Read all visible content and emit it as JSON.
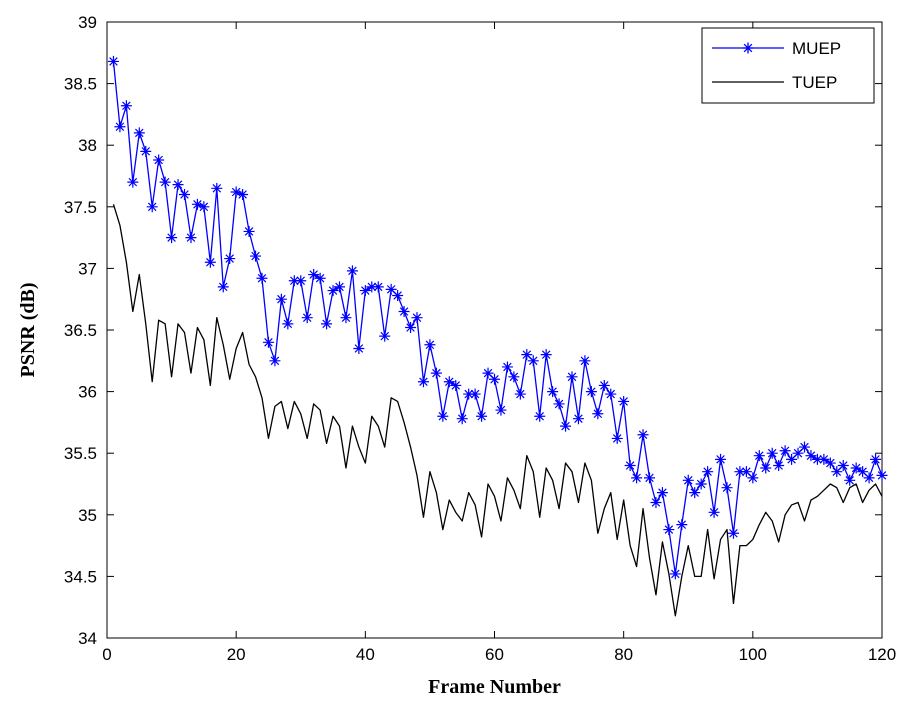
{
  "chart_data": {
    "type": "line",
    "xlabel": "Frame Number",
    "ylabel": "PSNR (dB)",
    "xlim": [
      0,
      120
    ],
    "ylim": [
      34,
      39
    ],
    "xticks": [
      0,
      20,
      40,
      60,
      80,
      100,
      120
    ],
    "yticks": [
      34,
      34.5,
      35,
      35.5,
      36,
      36.5,
      37,
      37.5,
      38,
      38.5,
      39
    ],
    "xtick_labels": [
      "0",
      "20",
      "40",
      "60",
      "80",
      "100",
      "120"
    ],
    "ytick_labels": [
      "34",
      "34.5",
      "35",
      "35.5",
      "36",
      "36.5",
      "37",
      "37.5",
      "38",
      "38.5",
      "39"
    ],
    "grid": false,
    "legend_position": "top-right",
    "series": [
      {
        "name": "MUEP",
        "color": "#0000ff",
        "marker": "star",
        "x": [
          1,
          2,
          3,
          4,
          5,
          6,
          7,
          8,
          9,
          10,
          11,
          12,
          13,
          14,
          15,
          16,
          17,
          18,
          19,
          20,
          21,
          22,
          23,
          24,
          25,
          26,
          27,
          28,
          29,
          30,
          31,
          32,
          33,
          34,
          35,
          36,
          37,
          38,
          39,
          40,
          41,
          42,
          43,
          44,
          45,
          46,
          47,
          48,
          49,
          50,
          51,
          52,
          53,
          54,
          55,
          56,
          57,
          58,
          59,
          60,
          61,
          62,
          63,
          64,
          65,
          66,
          67,
          68,
          69,
          70,
          71,
          72,
          73,
          74,
          75,
          76,
          77,
          78,
          79,
          80,
          81,
          82,
          83,
          84,
          85,
          86,
          87,
          88,
          89,
          90,
          91,
          92,
          93,
          94,
          95,
          96,
          97,
          98,
          99,
          100,
          101,
          102,
          103,
          104,
          105,
          106,
          107,
          108,
          109,
          110,
          111,
          112,
          113,
          114,
          115,
          116,
          117,
          118,
          119,
          120
        ],
        "y": [
          38.68,
          38.15,
          38.32,
          37.7,
          38.1,
          37.95,
          37.5,
          37.88,
          37.7,
          37.25,
          37.68,
          37.6,
          37.25,
          37.52,
          37.5,
          37.05,
          37.65,
          36.85,
          37.08,
          37.62,
          37.6,
          37.3,
          37.1,
          36.92,
          36.4,
          36.25,
          36.75,
          36.55,
          36.9,
          36.9,
          36.6,
          36.95,
          36.92,
          36.55,
          36.82,
          36.85,
          36.6,
          36.98,
          36.35,
          36.82,
          36.85,
          36.85,
          36.45,
          36.83,
          36.78,
          36.65,
          36.52,
          36.6,
          36.08,
          36.38,
          36.15,
          35.8,
          36.08,
          36.05,
          35.78,
          35.98,
          35.98,
          35.8,
          36.15,
          36.1,
          35.85,
          36.2,
          36.12,
          35.98,
          36.3,
          36.25,
          35.8,
          36.3,
          36.0,
          35.9,
          35.72,
          36.12,
          35.78,
          36.25,
          36.0,
          35.82,
          36.05,
          35.98,
          35.62,
          35.92,
          35.4,
          35.3,
          35.65,
          35.3,
          35.1,
          35.18,
          34.88,
          34.52,
          34.92,
          35.28,
          35.18,
          35.25,
          35.35,
          35.02,
          35.45,
          35.22,
          34.85,
          35.35,
          35.35,
          35.3,
          35.48,
          35.38,
          35.5,
          35.4,
          35.52,
          35.45,
          35.5,
          35.55,
          35.48,
          35.45,
          35.45,
          35.42,
          35.35,
          35.4,
          35.28,
          35.38,
          35.35,
          35.3,
          35.45,
          35.32
        ]
      },
      {
        "name": "TUEP",
        "color": "#000000",
        "x": [
          1,
          2,
          3,
          4,
          5,
          6,
          7,
          8,
          9,
          10,
          11,
          12,
          13,
          14,
          15,
          16,
          17,
          18,
          19,
          20,
          21,
          22,
          23,
          24,
          25,
          26,
          27,
          28,
          29,
          30,
          31,
          32,
          33,
          34,
          35,
          36,
          37,
          38,
          39,
          40,
          41,
          42,
          43,
          44,
          45,
          46,
          47,
          48,
          49,
          50,
          51,
          52,
          53,
          54,
          55,
          56,
          57,
          58,
          59,
          60,
          61,
          62,
          63,
          64,
          65,
          66,
          67,
          68,
          69,
          70,
          71,
          72,
          73,
          74,
          75,
          76,
          77,
          78,
          79,
          80,
          81,
          82,
          83,
          84,
          85,
          86,
          87,
          88,
          89,
          90,
          91,
          92,
          93,
          94,
          95,
          96,
          97,
          98,
          99,
          100,
          101,
          102,
          103,
          104,
          105,
          106,
          107,
          108,
          109,
          110,
          111,
          112,
          113,
          114,
          115,
          116,
          117,
          118,
          119,
          120
        ],
        "y": [
          37.52,
          37.35,
          37.05,
          36.65,
          36.95,
          36.55,
          36.08,
          36.58,
          36.55,
          36.12,
          36.55,
          36.48,
          36.15,
          36.52,
          36.42,
          36.05,
          36.6,
          36.38,
          36.1,
          36.35,
          36.48,
          36.22,
          36.12,
          35.95,
          35.62,
          35.88,
          35.92,
          35.7,
          35.92,
          35.82,
          35.62,
          35.9,
          35.85,
          35.58,
          35.8,
          35.72,
          35.38,
          35.72,
          35.55,
          35.42,
          35.8,
          35.72,
          35.55,
          35.95,
          35.92,
          35.75,
          35.55,
          35.32,
          34.98,
          35.35,
          35.18,
          34.88,
          35.12,
          35.02,
          34.95,
          35.18,
          35.08,
          34.82,
          35.25,
          35.15,
          34.95,
          35.3,
          35.2,
          35.05,
          35.48,
          35.35,
          34.98,
          35.38,
          35.28,
          35.05,
          35.42,
          35.35,
          35.1,
          35.42,
          35.28,
          34.85,
          35.05,
          35.18,
          34.8,
          35.12,
          34.75,
          34.58,
          35.05,
          34.65,
          34.35,
          34.78,
          34.52,
          34.18,
          34.5,
          34.75,
          34.5,
          34.5,
          34.88,
          34.48,
          34.8,
          34.88,
          34.28,
          34.75,
          34.75,
          34.8,
          34.92,
          35.02,
          34.95,
          34.78,
          35.0,
          35.08,
          35.1,
          34.95,
          35.12,
          35.15,
          35.2,
          35.25,
          35.22,
          35.1,
          35.22,
          35.25,
          35.1,
          35.2,
          35.25,
          35.15
        ]
      }
    ]
  }
}
